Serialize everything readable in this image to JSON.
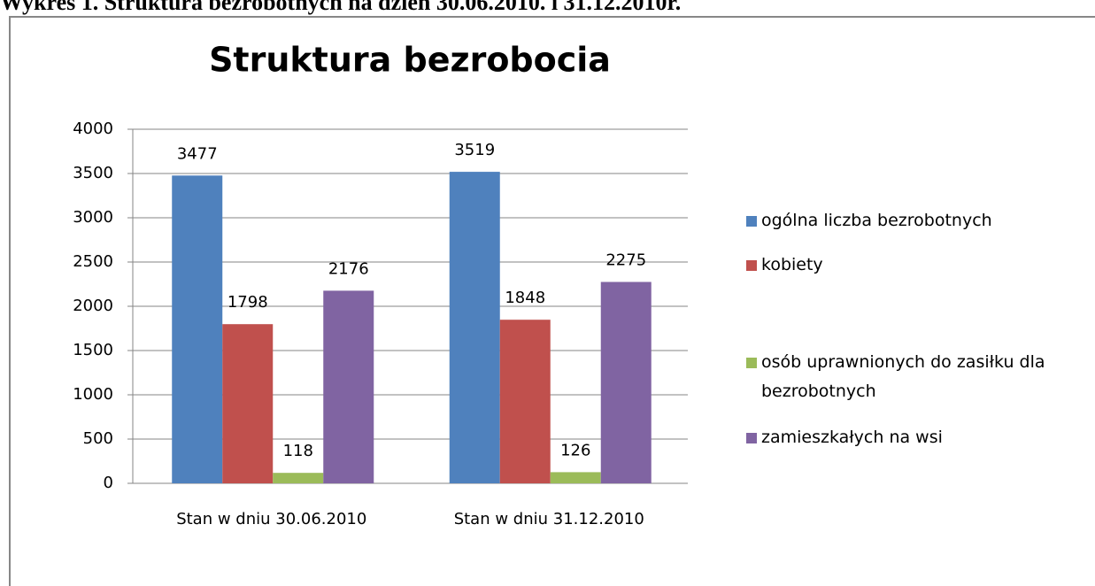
{
  "caption": "Wykres 1. Struktura bezrobotnych na dzień 30.06.2010. i 31.12.2010r.",
  "chart_data": {
    "type": "bar",
    "title": "Struktura bezrobocia",
    "categories": [
      "Stan w dniu 30.06.2010",
      "Stan w dniu 31.12.2010"
    ],
    "series": [
      {
        "name": "ogólna liczba bezrobotnych",
        "color": "#4f81bd",
        "values": [
          3477,
          3519
        ]
      },
      {
        "name": "kobiety",
        "color": "#c0504d",
        "values": [
          1798,
          1848
        ]
      },
      {
        "name": "osób uprawnionych do zasiłku dla bezrobotnych",
        "color": "#9bbb59",
        "values": [
          118,
          126
        ]
      },
      {
        "name": "zamieszkałych na wsi",
        "color": "#8064a2",
        "values": [
          2176,
          2275
        ]
      }
    ],
    "ylim": [
      0,
      4000
    ],
    "yticks": [
      0,
      500,
      1000,
      1500,
      2000,
      2500,
      3000,
      3500,
      4000
    ],
    "grid": true,
    "legend": "right"
  }
}
